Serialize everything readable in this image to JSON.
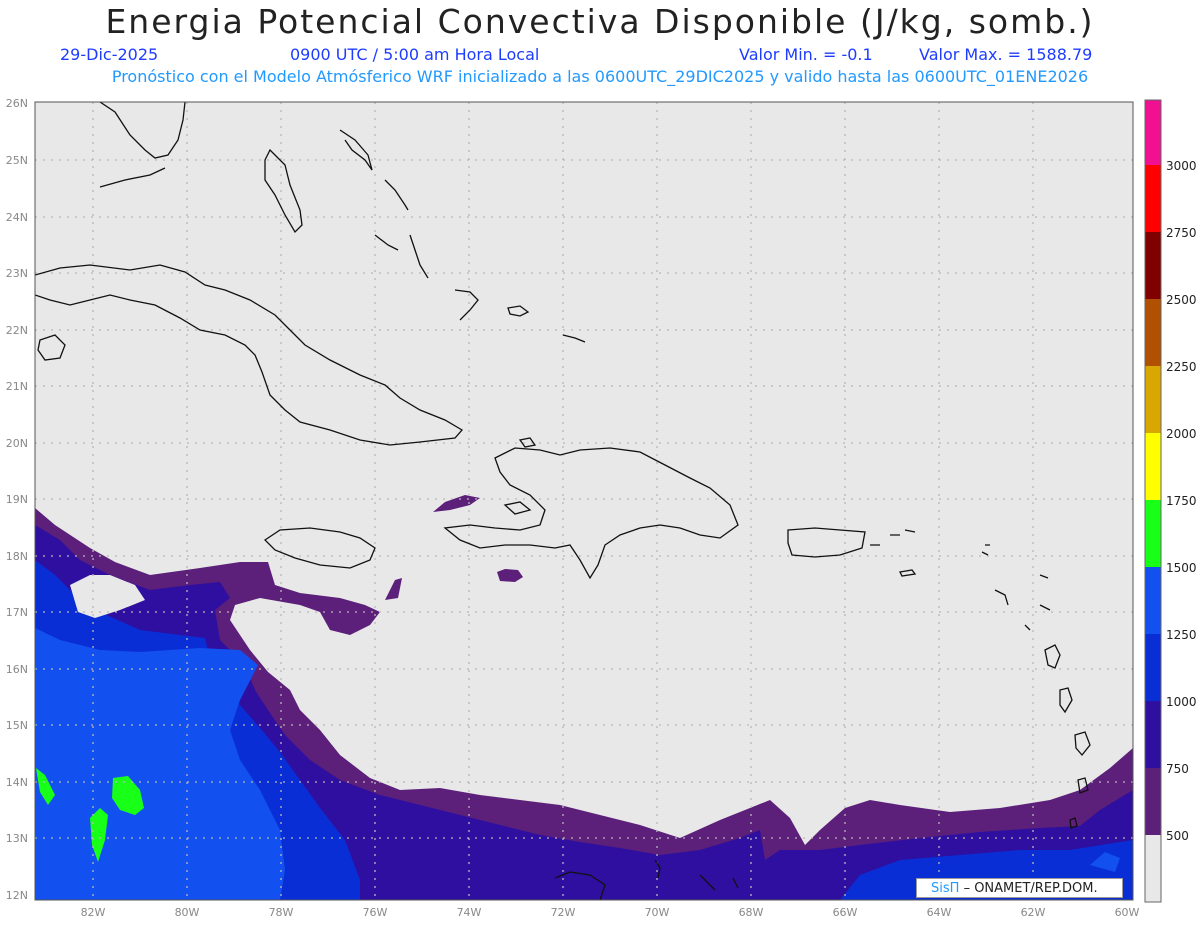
{
  "header": {
    "title": "Energia Potencial Convectiva Disponible (J/kg, somb.)",
    "date": "29-Dic-2025",
    "time": "0900 UTC / 5:00 am Hora Local",
    "valmin": "Valor Min. = -0.1",
    "valmax": "Valor Max. = 1588.79",
    "forecast": "Pronóstico con el Modelo Atmósferico WRF inicializado a las 0600UTC_29DIC2025 y valido hasta las  0600UTC_01ENE2026"
  },
  "axes": {
    "lon_labels": [
      "82W",
      "80W",
      "78W",
      "76W",
      "74W",
      "72W",
      "70W",
      "68W",
      "66W",
      "64W",
      "62W",
      "60W"
    ],
    "lat_labels": [
      "12N",
      "13N",
      "14N",
      "15N",
      "16N",
      "17N",
      "18N",
      "19N",
      "20N",
      "21N",
      "22N",
      "23N",
      "24N",
      "25N",
      "26N"
    ]
  },
  "colorbar": {
    "levels": [
      "500",
      "750",
      "1000",
      "1250",
      "1500",
      "1750",
      "2000",
      "2250",
      "2500",
      "2750",
      "3000"
    ],
    "colors": [
      "#e8e8e8",
      "#5c1f7a",
      "#2e0fa0",
      "#0a2ed6",
      "#1250f0",
      "#18ff18",
      "#ffff00",
      "#d8a800",
      "#b05000",
      "#800000",
      "#ff0000",
      "#f01090"
    ]
  },
  "credit": {
    "brand": "SisΠ",
    "text": "– ONAMET/REP.DOM."
  }
}
